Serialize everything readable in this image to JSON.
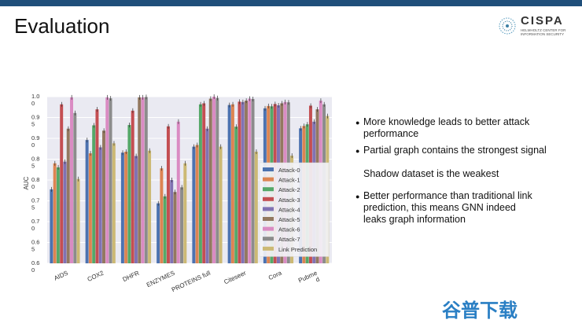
{
  "slide": {
    "title": "Evaluation"
  },
  "logo": {
    "name": "CISPA",
    "sub_line1": "HELMHOLTZ CENTER FOR",
    "sub_line2": "INFORMATION SECURITY"
  },
  "bullets": [
    {
      "text1": "More knowledge leads to better attack",
      "text2": "performance"
    },
    {
      "text1": "Partial graph contains the strongest signal"
    }
  ],
  "plain_text": "Shadow dataset is the weakest",
  "bullets2": [
    {
      "text1": "Better performance than traditional link",
      "text2": "prediction, this means GNN indeed",
      "text3": "leaks  graph information"
    }
  ],
  "watermark": "谷普下载",
  "colors": [
    "#4c72b0",
    "#dd8452",
    "#55a868",
    "#c44e52",
    "#8172b3",
    "#937860",
    "#da8bc3",
    "#8c8c8c",
    "#ccb974"
  ],
  "chart_data": {
    "type": "bar",
    "ylabel": "AUC",
    "ylim": [
      0.5,
      1.0
    ],
    "ytick_labels": [
      "0.6\n0",
      "0.6\n5",
      "0.7\n0",
      "0.7\n5",
      "0.8\n0",
      "0.8\n5",
      "0.9\n0",
      "0.9\n5",
      "1.0\n0"
    ],
    "categories": [
      "AIDS",
      "COX2",
      "DHFR",
      "ENZYMES",
      "PROTEINS full",
      "Citeseer",
      "Cora",
      "Pubme\nd"
    ],
    "legend_position": "bottom-right",
    "series": [
      {
        "name": "Attack-0",
        "values": [
          0.722,
          0.87,
          0.832,
          0.68,
          0.85,
          0.975,
          0.965,
          0.905
        ]
      },
      {
        "name": "Attack-1",
        "values": [
          0.8,
          0.83,
          0.835,
          0.785,
          0.855,
          0.977,
          0.972,
          0.912
        ]
      },
      {
        "name": "Attack-2",
        "values": [
          0.788,
          0.914,
          0.915,
          0.701,
          0.977,
          0.91,
          0.971,
          0.917
        ]
      },
      {
        "name": "Attack-3",
        "values": [
          0.977,
          0.962,
          0.958,
          0.911,
          0.98,
          0.985,
          0.978,
          0.973
        ]
      },
      {
        "name": "Attack-4",
        "values": [
          0.805,
          0.848,
          0.822,
          0.75,
          0.904,
          0.984,
          0.974,
          0.925
        ]
      },
      {
        "name": "Attack-5",
        "values": [
          0.904,
          0.898,
          0.998,
          0.714,
          0.994,
          0.988,
          0.98,
          0.962
        ]
      },
      {
        "name": "Attack-6",
        "values": [
          0.998,
          0.998,
          0.998,
          0.925,
          1.0,
          0.994,
          0.984,
          0.988
        ]
      },
      {
        "name": "Attack-7",
        "values": [
          0.951,
          0.995,
          0.999,
          0.728,
          0.996,
          0.993,
          0.983,
          0.977
        ]
      },
      {
        "name": "Link Prediction",
        "values": [
          0.753,
          0.86,
          0.838,
          0.8,
          0.85,
          0.835,
          0.823,
          0.942
        ]
      }
    ]
  }
}
